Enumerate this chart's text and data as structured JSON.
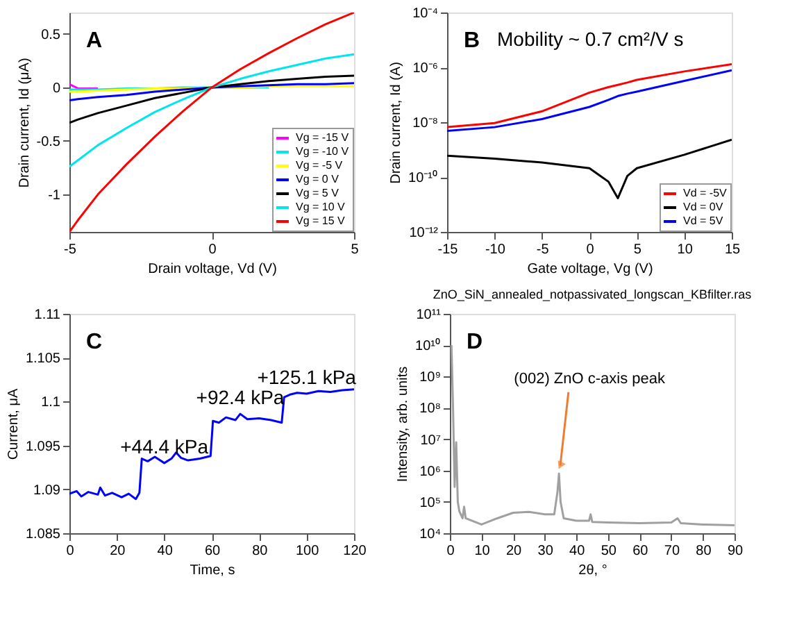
{
  "chart_data": [
    {
      "type": "line",
      "xlabel": "Drain voltage, Vd (V)",
      "ylabel": "Drain current, Id (μA)",
      "xlim": [
        -5,
        5
      ],
      "xticks": [
        -5,
        0,
        5
      ],
      "ylim": [
        -1.35,
        0.7
      ],
      "yticks": [
        -1,
        -0.5,
        0,
        0.5
      ],
      "legend": "bottom right",
      "grid": false,
      "annotations": [
        "A"
      ],
      "x": [
        -5,
        -4.7,
        -4,
        -3,
        -2,
        -1,
        0,
        1,
        2,
        3,
        4,
        5
      ],
      "series": [
        {
          "name": "Vg = -15 V",
          "color": "#ff00ff",
          "values": [
            0.03,
            -0.01,
            -0.01,
            null,
            null,
            null,
            null,
            null,
            null,
            null,
            null,
            null
          ]
        },
        {
          "name": "Vg = -10 V",
          "color": "#00e5ee",
          "values": [
            -0.02,
            -0.02,
            -0.02,
            -0.01,
            -0.01,
            0,
            0,
            0,
            0,
            null,
            null,
            null
          ]
        },
        {
          "name": "Vg = -5 V",
          "color": "#ffff00",
          "values": [
            -0.04,
            -0.04,
            -0.03,
            -0.02,
            -0.01,
            -0.01,
            0,
            0,
            0.01,
            0.01,
            0.01,
            0.01
          ]
        },
        {
          "name": "Vg = 0 V",
          "color": "#0000ff",
          "values": [
            -0.12,
            -0.11,
            -0.09,
            -0.07,
            -0.04,
            -0.02,
            0,
            0.01,
            0.02,
            0.03,
            0.03,
            0.04
          ]
        },
        {
          "name": "Vg = 5 V",
          "color": "#000000",
          "values": [
            -0.33,
            -0.3,
            -0.24,
            -0.17,
            -0.1,
            -0.05,
            0,
            0.03,
            0.06,
            0.08,
            0.1,
            0.11
          ]
        },
        {
          "name": "Vg = 10 V",
          "color": "#00e5ee",
          "values": [
            -0.74,
            -0.68,
            -0.54,
            -0.38,
            -0.23,
            -0.11,
            0,
            0.08,
            0.15,
            0.21,
            0.27,
            0.31
          ]
        },
        {
          "name": "Vg = 15 V",
          "color": "#ff0000",
          "values": [
            -1.35,
            -1.24,
            -1.0,
            -0.72,
            -0.46,
            -0.22,
            0,
            0.17,
            0.32,
            0.46,
            0.59,
            0.7
          ]
        }
      ]
    },
    {
      "type": "line",
      "log": "y",
      "xlabel": "Gate voltage, Vg (V)",
      "ylabel": "Drain current, Id (A)",
      "xlim": [
        -15,
        15
      ],
      "xticks": [
        -15,
        -10,
        -5,
        0,
        5,
        10,
        15
      ],
      "ylim": [
        1e-12,
        0.0001
      ],
      "yticks": [
        {
          "value": 1e-12,
          "label": "10⁻¹²"
        },
        {
          "value": 1e-10,
          "label": "10⁻¹⁰"
        },
        {
          "value": 1e-08,
          "label": "10⁻⁸"
        },
        {
          "value": 1e-06,
          "label": "10⁻⁶"
        },
        {
          "value": 0.0001,
          "label": "10⁻⁴"
        }
      ],
      "legend": "bottom right",
      "grid": false,
      "annotations": [
        "B",
        "Mobility ~ 0.7 cm²/V s"
      ],
      "x": [
        -15,
        -10,
        -5,
        0,
        2,
        3,
        4,
        5,
        10,
        15
      ],
      "series": [
        {
          "name": "Vd = -5V",
          "color": "#ff0000",
          "values": [
            6.6e-09,
            9.3e-09,
            2.5e-08,
            1.2e-07,
            1.9e-07,
            2.3e-07,
            2.8e-07,
            3.5e-07,
            7.1e-07,
            1.3e-06
          ]
        },
        {
          "name": "Vd = 0V",
          "color": "#000000",
          "values": [
            6e-10,
            4.7e-10,
            3.4e-10,
            2.1e-10,
            6.8e-11,
            1.7e-11,
            1.1e-10,
            2.1e-10,
            6.5e-10,
            2.3e-09
          ]
        },
        {
          "name": "Vd = 5V",
          "color": "#0000ff",
          "values": [
            4.8e-09,
            6.6e-09,
            1.3e-08,
            3.6e-08,
            6.5e-08,
            9e-08,
            1.1e-07,
            1.3e-07,
            3.2e-07,
            7.8e-07
          ]
        }
      ]
    },
    {
      "type": "line",
      "xlabel": "Time, s",
      "ylabel": "Current, μA",
      "xlim": [
        0,
        120
      ],
      "xticks": [
        0,
        20,
        40,
        60,
        80,
        100,
        120
      ],
      "ylim": [
        1.085,
        1.11
      ],
      "yticks": [
        1.085,
        1.09,
        1.095,
        1.1,
        1.105,
        1.11
      ],
      "grid": false,
      "annotations": [
        "C",
        {
          "text": "+44.4 kPa",
          "x": 40,
          "y": 1.093
        },
        {
          "text": "+92.4 kPa",
          "x": 72,
          "y": 1.0986
        },
        {
          "text": "+125.1 kPa",
          "x": 100,
          "y": 1.1009
        }
      ],
      "x": [
        0,
        3,
        5,
        8,
        12,
        13,
        15,
        18,
        22,
        25,
        28,
        29.5,
        30.5,
        33,
        36,
        40,
        43,
        45,
        47,
        50,
        55,
        59.5,
        60.5,
        63,
        66,
        70,
        72,
        75,
        80,
        85,
        89.5,
        90.5,
        93,
        96,
        100,
        105,
        110,
        115,
        120
      ],
      "series": [
        {
          "color": "#0000ff",
          "values": [
            1.0895,
            1.0898,
            1.0892,
            1.0897,
            1.0894,
            1.0902,
            1.0893,
            1.0896,
            1.0891,
            1.0895,
            1.0889,
            1.0896,
            1.0935,
            1.0932,
            1.0937,
            1.093,
            1.0935,
            1.0942,
            1.0936,
            1.0933,
            1.0935,
            1.0938,
            1.0978,
            1.0976,
            1.0982,
            1.0979,
            1.0986,
            1.098,
            1.0981,
            1.0979,
            1.0976,
            1.1005,
            1.1008,
            1.101,
            1.1009,
            1.1012,
            1.1011,
            1.1013,
            1.1014
          ]
        }
      ]
    },
    {
      "type": "line",
      "log": "y",
      "title": "ZnO_SiN_annealed_notpassivated_longscan_KBfilter.ras",
      "xlabel": "2θ, °",
      "ylabel": "Intensity, arb. units",
      "xlim": [
        0,
        90
      ],
      "xticks": [
        0,
        10,
        20,
        30,
        40,
        50,
        60,
        70,
        80,
        90
      ],
      "ylim": [
        10000.0,
        100000000000.0
      ],
      "yticks": [
        {
          "value": 10000.0,
          "label": "10⁴"
        },
        {
          "value": 100000.0,
          "label": "10⁵"
        },
        {
          "value": 1000000.0,
          "label": "10⁶"
        },
        {
          "value": 10000000.0,
          "label": "10⁷"
        },
        {
          "value": 100000000.0,
          "label": "10⁸"
        },
        {
          "value": 1000000000.0,
          "label": "10⁹"
        },
        {
          "value": 10000000000.0,
          "label": "10¹⁰"
        },
        {
          "value": 100000000000.0,
          "label": "10¹¹"
        }
      ],
      "grid": false,
      "annotations": [
        "D",
        {
          "text": "(002) ZnO c-axis peak",
          "x": 34.5,
          "y": 800000
        }
      ],
      "x": [
        0.5,
        1,
        1.5,
        2,
        2.5,
        3,
        4,
        4.5,
        5,
        10,
        15,
        20,
        25,
        30,
        33,
        34,
        34.5,
        35,
        36,
        40,
        44,
        44.5,
        45,
        50,
        60,
        70,
        72,
        73,
        80,
        90
      ],
      "series": [
        {
          "color": "#a0a0a0",
          "values": [
            10000000000.0,
            100000000.0,
            300000.0,
            8000000.0,
            100000.0,
            50000.0,
            30000.0,
            70000.0,
            30000.0,
            19000.0,
            30000.0,
            45000.0,
            48000.0,
            40000.0,
            40000.0,
            200000.0,
            800000.0,
            100000.0,
            30000.0,
            25000.0,
            25000.0,
            40000.0,
            23000.0,
            22000.0,
            21000.0,
            22000.0,
            30000.0,
            21000.0,
            19000.0,
            18000.0
          ]
        }
      ]
    }
  ]
}
